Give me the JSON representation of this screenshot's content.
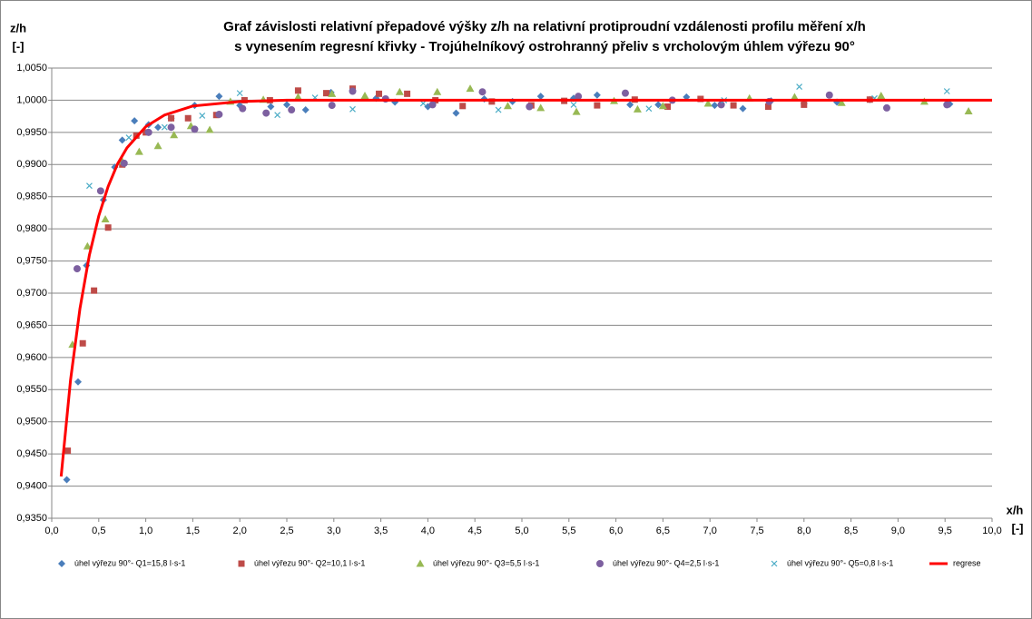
{
  "chart_data": {
    "type": "scatter",
    "title": [
      "Graf závislosti relativní přepadové výšky z/h na relativní protiproudní vzdálenosti profilu měření x/h",
      "s vynesením regresní křivky - Trojúhelníkový ostrohranný přeliv s vrcholovým úhlem výřezu 90°"
    ],
    "y_label": [
      "z/h",
      "[-]"
    ],
    "x_label": [
      "x/h",
      "[-]"
    ],
    "xlim": [
      0,
      10
    ],
    "ylim": [
      0.935,
      1.005
    ],
    "xticks": [
      {
        "value": 0,
        "label": "0,0"
      },
      {
        "value": 0.5,
        "label": "0,5"
      },
      {
        "value": 1,
        "label": "1,0"
      },
      {
        "value": 1.5,
        "label": "1,5"
      },
      {
        "value": 2,
        "label": "2,0"
      },
      {
        "value": 2.5,
        "label": "2,5"
      },
      {
        "value": 3,
        "label": "3,0"
      },
      {
        "value": 3.5,
        "label": "3,5"
      },
      {
        "value": 4,
        "label": "4,0"
      },
      {
        "value": 4.5,
        "label": "4,5"
      },
      {
        "value": 5,
        "label": "5,0"
      },
      {
        "value": 5.5,
        "label": "5,5"
      },
      {
        "value": 6,
        "label": "6,0"
      },
      {
        "value": 6.5,
        "label": "6,5"
      },
      {
        "value": 7,
        "label": "7,0"
      },
      {
        "value": 7.5,
        "label": "7,5"
      },
      {
        "value": 8,
        "label": "8,0"
      },
      {
        "value": 8.5,
        "label": "8,5"
      },
      {
        "value": 9,
        "label": "9,0"
      },
      {
        "value": 9.5,
        "label": "9,5"
      },
      {
        "value": 10,
        "label": "10,0"
      }
    ],
    "yticks": [
      {
        "value": 0.935,
        "label": "0,9350"
      },
      {
        "value": 0.94,
        "label": "0,9400"
      },
      {
        "value": 0.945,
        "label": "0,9450"
      },
      {
        "value": 0.95,
        "label": "0,9500"
      },
      {
        "value": 0.955,
        "label": "0,9550"
      },
      {
        "value": 0.96,
        "label": "0,9600"
      },
      {
        "value": 0.965,
        "label": "0,9650"
      },
      {
        "value": 0.97,
        "label": "0,9700"
      },
      {
        "value": 0.975,
        "label": "0,9750"
      },
      {
        "value": 0.98,
        "label": "0,9800"
      },
      {
        "value": 0.985,
        "label": "0,9850"
      },
      {
        "value": 0.99,
        "label": "0,9900"
      },
      {
        "value": 0.995,
        "label": "0,9950"
      },
      {
        "value": 1,
        "label": "1,0000"
      },
      {
        "value": 1.005,
        "label": "1,0050"
      }
    ],
    "grid": true,
    "legend": "bottom",
    "series": [
      {
        "name": "úhel výřezu 90°- Q1=15,8 l·s-1",
        "color": "#4a7ebb",
        "marker": "diamond",
        "x": [
          0.16,
          0.28,
          0.37,
          0.55,
          0.67,
          0.75,
          0.88,
          1.03,
          1.13,
          1.27,
          1.52,
          1.78,
          2.0,
          2.33,
          2.5,
          2.7,
          2.97,
          3.2,
          3.45,
          3.65,
          4.0,
          4.3,
          4.6,
          4.9,
          5.2,
          5.55,
          5.8,
          6.15,
          6.45,
          6.75,
          7.05,
          7.35,
          7.65,
          8.0,
          8.35,
          8.7,
          9.55
        ],
        "values": [
          0.941,
          0.9562,
          0.9743,
          0.9845,
          0.9896,
          0.9938,
          0.9968,
          0.9962,
          0.9958,
          0.9972,
          0.9992,
          1.0006,
          0.9992,
          0.999,
          0.9993,
          0.9985,
          1.0012,
          1.0015,
          1.0003,
          0.9997,
          0.999,
          0.998,
          1.0002,
          0.9998,
          1.0006,
          1.0003,
          1.0008,
          0.9993,
          0.9993,
          1.0005,
          0.9992,
          0.9987,
          0.9999,
          0.9995,
          0.9997,
          1.0001,
          0.9994
        ]
      },
      {
        "name": "úhel výřezu 90°- Q2=10,1 l·s-1",
        "color": "#be4b48",
        "marker": "square",
        "x": [
          0.17,
          0.33,
          0.45,
          0.6,
          0.75,
          0.9,
          1.0,
          1.27,
          1.45,
          1.75,
          2.05,
          2.32,
          2.62,
          2.92,
          3.2,
          3.48,
          3.78,
          4.08,
          4.37,
          4.68,
          5.1,
          5.45,
          5.8,
          6.2,
          6.55,
          6.9,
          7.25,
          7.62,
          8.0,
          8.7
        ],
        "values": [
          0.9455,
          0.9622,
          0.9704,
          0.9802,
          0.99,
          0.9945,
          0.995,
          0.9972,
          0.9972,
          0.9977,
          1.0,
          1.0,
          1.0015,
          1.0011,
          1.0018,
          1.001,
          1.001,
          1.0,
          0.9991,
          0.9998,
          0.9992,
          0.9999,
          0.9992,
          1.0001,
          0.999,
          1.0002,
          0.9992,
          0.999,
          0.9993,
          1.0001
        ]
      },
      {
        "name": "úhel výřezu 90°- Q3=5,5 l·s-1",
        "color": "#98b954",
        "marker": "triangle",
        "x": [
          0.22,
          0.38,
          0.57,
          0.75,
          0.93,
          1.13,
          1.3,
          1.48,
          1.68,
          1.9,
          2.25,
          2.62,
          2.98,
          3.33,
          3.7,
          4.1,
          4.45,
          4.85,
          5.2,
          5.58,
          5.98,
          6.23,
          6.5,
          6.98,
          7.42,
          7.9,
          8.4,
          8.82,
          9.28,
          9.75
        ],
        "values": [
          0.962,
          0.9773,
          0.9815,
          0.9905,
          0.992,
          0.9929,
          0.9946,
          0.996,
          0.9954,
          0.9998,
          1.0001,
          1.0005,
          1.001,
          1.0007,
          1.0013,
          1.0013,
          1.0018,
          0.9991,
          0.9988,
          0.9982,
          0.9999,
          0.9986,
          0.9991,
          0.9995,
          1.0003,
          1.0005,
          0.9996,
          1.0007,
          0.9998,
          0.9983
        ]
      },
      {
        "name": "úhel výřezu 90°- Q4=2,5 l·s-1",
        "color": "#7d60a0",
        "marker": "circle",
        "x": [
          0.27,
          0.52,
          0.77,
          1.03,
          1.27,
          1.52,
          1.78,
          2.03,
          2.28,
          2.55,
          2.98,
          3.2,
          3.55,
          4.05,
          4.58,
          5.08,
          5.6,
          6.1,
          6.6,
          7.12,
          7.63,
          8.27,
          8.88,
          9.52
        ],
        "values": [
          0.9738,
          0.9859,
          0.9902,
          0.995,
          0.9958,
          0.9955,
          0.9978,
          0.9987,
          0.998,
          0.9985,
          0.9992,
          1.0014,
          1.0002,
          0.9993,
          1.0013,
          0.999,
          1.0006,
          1.0011,
          1.0,
          0.9993,
          0.9998,
          1.0008,
          0.9988,
          0.9993
        ]
      },
      {
        "name": "úhel výřezu 90°- Q5=0,8 l·s-1",
        "color": "#4bacc6",
        "marker": "x",
        "x": [
          0.4,
          0.82,
          1.2,
          1.6,
          2.0,
          2.4,
          2.8,
          3.2,
          3.95,
          4.75,
          5.55,
          6.35,
          7.15,
          7.95,
          8.75,
          9.52
        ],
        "values": [
          0.9867,
          0.9942,
          0.9958,
          0.9976,
          1.0011,
          0.9977,
          1.0004,
          0.9986,
          0.9995,
          0.9985,
          0.9993,
          0.9987,
          1.0,
          1.0021,
          1.0003,
          1.0014
        ]
      },
      {
        "name": "regrese",
        "color": "#ff0000",
        "type": "line",
        "x": [
          0.1,
          0.2,
          0.3,
          0.4,
          0.5,
          0.6,
          0.7,
          0.8,
          1.0,
          1.2,
          1.5,
          2.0,
          2.5,
          5.0,
          10.0
        ],
        "values": [
          0.9415,
          0.9565,
          0.9676,
          0.9759,
          0.982,
          0.9866,
          0.9901,
          0.9926,
          0.9959,
          0.9977,
          0.9991,
          0.9998,
          1.0,
          1.0,
          1.0
        ]
      }
    ]
  }
}
